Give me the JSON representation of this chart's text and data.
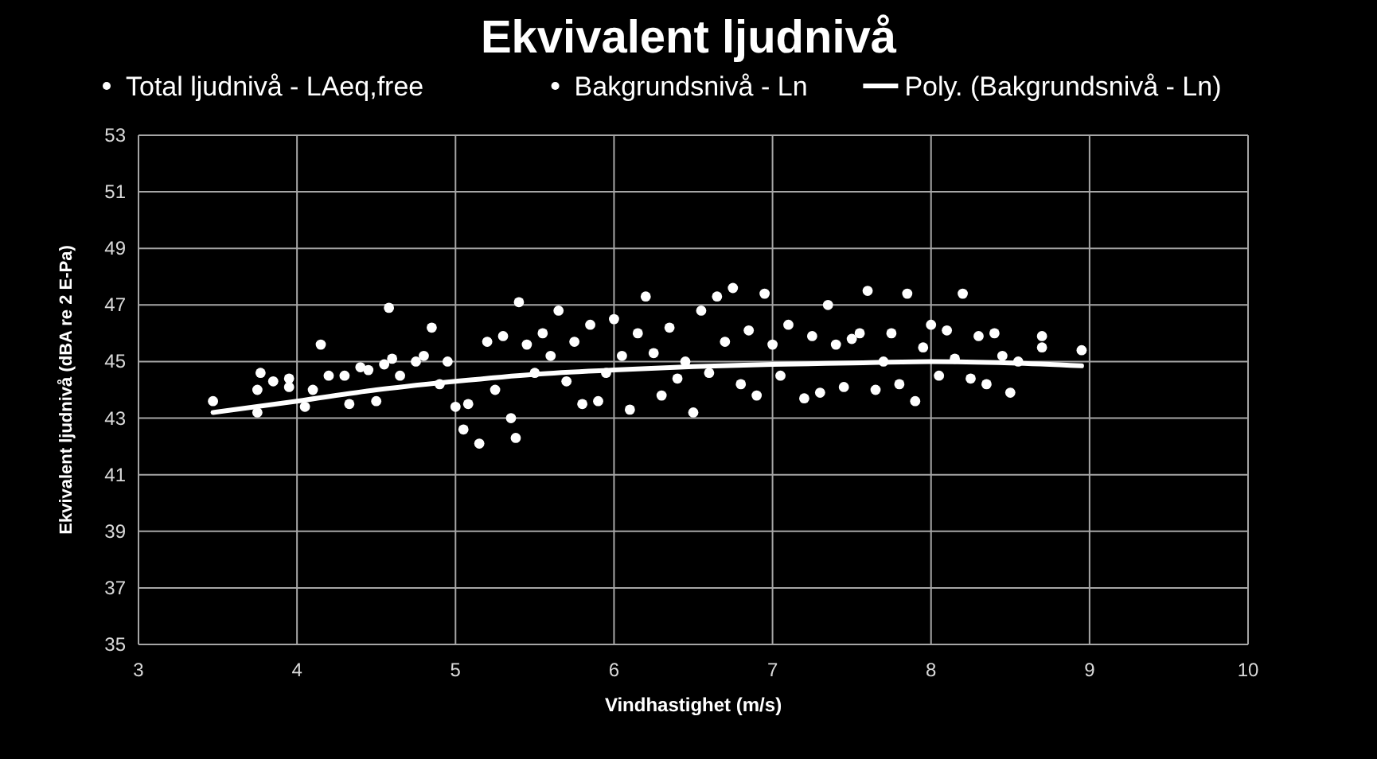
{
  "chart_data": {
    "type": "scatter",
    "title": "Ekvivalent ljudnivå",
    "xlabel": "Vindhastighet (m/s)",
    "ylabel": "Ekvivalent ljudnivå (dBA re 2 E-Pa)",
    "xlim": [
      3,
      10
    ],
    "xticks": [
      3,
      4,
      5,
      6,
      7,
      8,
      9,
      10
    ],
    "ylim": [
      35,
      53
    ],
    "yticks": [
      35,
      37,
      39,
      41,
      43,
      45,
      47,
      49,
      51,
      53
    ],
    "grid": true,
    "legend": "top",
    "marker": "circle",
    "series": [
      {
        "name": "Total ljudnivå - LAeq,free",
        "color": "#ffffff",
        "x": [
          3.47,
          3.75,
          3.85,
          3.95,
          4.1,
          4.2,
          4.33,
          4.45,
          4.55,
          4.58,
          4.75,
          4.85,
          4.95,
          5.05,
          5.15,
          5.25,
          5.35,
          5.4,
          5.5,
          5.6,
          5.7,
          5.8,
          5.9,
          6.0,
          6.1,
          6.2,
          6.3,
          6.4,
          6.5,
          6.6,
          6.7,
          6.8,
          6.9,
          7.0,
          7.1,
          7.25,
          7.35,
          7.45,
          7.55,
          7.65,
          7.75,
          7.85,
          7.95,
          8.05,
          8.15,
          8.25,
          8.35,
          8.45,
          8.55,
          8.7
        ],
        "values": [
          43.6,
          43.2,
          44.3,
          44.1,
          44.0,
          44.5,
          43.5,
          44.7,
          44.9,
          46.9,
          45.0,
          46.2,
          45.0,
          42.6,
          42.1,
          44.0,
          43.0,
          47.1,
          44.6,
          45.2,
          44.3,
          43.5,
          43.6,
          46.5,
          43.3,
          47.3,
          43.8,
          44.4,
          43.2,
          44.6,
          45.7,
          44.2,
          43.8,
          45.6,
          46.3,
          45.9,
          47.0,
          44.1,
          46.0,
          44.0,
          46.0,
          47.4,
          45.5,
          44.5,
          45.1,
          44.4,
          44.2,
          45.2,
          45.0,
          45.9
        ]
      },
      {
        "name": "Bakgrundsnivå - Ln",
        "color": "#ffffff",
        "x": [
          3.75,
          3.77,
          3.95,
          4.05,
          4.15,
          4.3,
          4.4,
          4.5,
          4.6,
          4.65,
          4.8,
          4.9,
          5.0,
          5.08,
          5.2,
          5.3,
          5.38,
          5.45,
          5.55,
          5.65,
          5.75,
          5.85,
          5.95,
          6.05,
          6.15,
          6.25,
          6.35,
          6.45,
          6.55,
          6.65,
          6.75,
          6.85,
          6.95,
          7.05,
          7.2,
          7.3,
          7.4,
          7.5,
          7.6,
          7.7,
          7.8,
          7.9,
          8.0,
          8.1,
          8.2,
          8.3,
          8.4,
          8.5,
          8.7,
          8.95
        ],
        "values": [
          44.0,
          44.6,
          44.4,
          43.4,
          45.6,
          44.5,
          44.8,
          43.6,
          45.1,
          44.5,
          45.2,
          44.2,
          43.4,
          43.5,
          45.7,
          45.9,
          42.3,
          45.6,
          46.0,
          46.8,
          45.7,
          46.3,
          44.6,
          45.2,
          46.0,
          45.3,
          46.2,
          45.0,
          46.8,
          47.3,
          47.6,
          46.1,
          47.4,
          44.5,
          43.7,
          43.9,
          45.6,
          45.8,
          47.5,
          45.0,
          44.2,
          43.6,
          46.3,
          46.1,
          47.4,
          45.9,
          46.0,
          43.9,
          45.5,
          45.4
        ]
      },
      {
        "name": "Poly. (Bakgrundsnivå - Ln)",
        "type": "line",
        "marker": "none",
        "color": "#ffffff",
        "x": [
          3.47,
          4,
          4.5,
          5,
          5.5,
          6,
          6.5,
          7,
          7.5,
          8,
          8.5,
          8.95
        ],
        "values": [
          43.2,
          43.6,
          44.0,
          44.3,
          44.55,
          44.7,
          44.82,
          44.9,
          44.95,
          45.0,
          44.95,
          44.85
        ]
      }
    ]
  }
}
